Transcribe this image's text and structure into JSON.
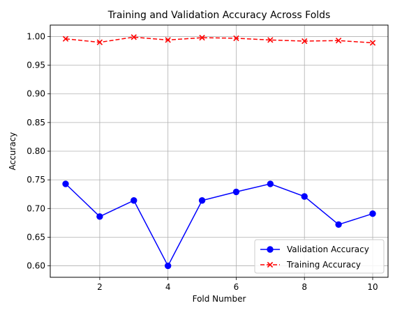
{
  "chart_data": {
    "type": "line",
    "title": "Training and Validation Accuracy Across Folds",
    "xlabel": "Fold Number",
    "ylabel": "Accuracy",
    "x": [
      1,
      2,
      3,
      4,
      5,
      6,
      7,
      8,
      9,
      10
    ],
    "xlim": [
      0.55,
      10.45
    ],
    "ylim": [
      0.58,
      1.02
    ],
    "xticks": [
      2,
      4,
      6,
      8,
      10
    ],
    "xtick_labels": [
      "2",
      "4",
      "6",
      "8",
      "10"
    ],
    "yticks": [
      0.6,
      0.65,
      0.7,
      0.75,
      0.8,
      0.85,
      0.9,
      0.95,
      1.0
    ],
    "ytick_labels": [
      "0.60",
      "0.65",
      "0.70",
      "0.75",
      "0.80",
      "0.85",
      "0.90",
      "0.95",
      "1.00"
    ],
    "grid": true,
    "legend_position": "lower-right",
    "series": [
      {
        "name": "Validation Accuracy",
        "values": [
          0.743,
          0.686,
          0.714,
          0.6,
          0.714,
          0.729,
          0.743,
          0.721,
          0.672,
          0.691
        ],
        "color": "#0000ff",
        "line_style": "solid",
        "marker": "circle"
      },
      {
        "name": "Training Accuracy",
        "values": [
          0.996,
          0.99,
          0.999,
          0.994,
          0.998,
          0.997,
          0.994,
          0.992,
          0.993,
          0.989
        ],
        "color": "#ff0000",
        "line_style": "dashed",
        "marker": "x"
      }
    ]
  }
}
